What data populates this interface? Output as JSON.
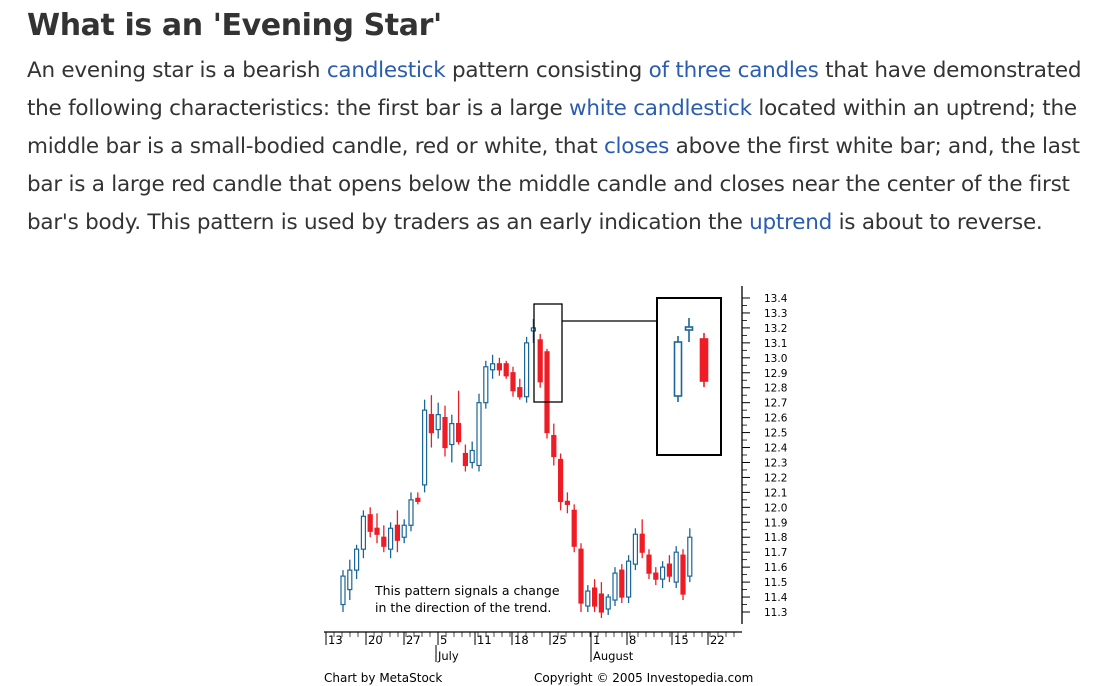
{
  "article": {
    "title": "What is an 'Evening Star'",
    "paragraph": [
      {
        "text": "An evening star is a bearish "
      },
      {
        "text": "candlestick",
        "link": true
      },
      {
        "text": " pattern consisting "
      },
      {
        "text": "of three candles",
        "link": true
      },
      {
        "text": " that have demonstrated the following characteristics: the first bar is a large "
      },
      {
        "text": "white candlestick",
        "link": true
      },
      {
        "text": " located within an uptrend; the middle bar is a small-bodied candle, red or white, that "
      },
      {
        "text": "closes",
        "link": true
      },
      {
        "text": " above the first white bar; and, the last bar is a large red candle that opens below the middle candle and closes near the center of the first bar's body. This pattern is used by traders as an early indication the "
      },
      {
        "text": "uptrend",
        "link": true
      },
      {
        "text": " is about to reverse."
      }
    ]
  },
  "colors": {
    "up": "#1a6699",
    "down": "#ee1c24",
    "link": "#2a5db0",
    "text": "#333333"
  },
  "chart_data": {
    "type": "candlestick",
    "y_ticks": [
      "13.4",
      "13.3",
      "13.2",
      "13.1",
      "13.0",
      "12.9",
      "12.8",
      "12.7",
      "12.6",
      "12.5",
      "12.4",
      "12.3",
      "12.2",
      "12.1",
      "12.0",
      "11.9",
      "11.8",
      "11.7",
      "11.6",
      "11.5",
      "11.4",
      "11.3"
    ],
    "ylim": [
      11.25,
      13.45
    ],
    "x_ticks": [
      "13",
      "20",
      "27",
      "5",
      "11",
      "18",
      "25",
      "1",
      "8",
      "15",
      "22"
    ],
    "month_labels": [
      "July",
      "August"
    ],
    "annotation": [
      "This pattern signals a change",
      "in the direction of the trend."
    ],
    "credit_left": "Chart by MetaStock",
    "credit_right": "Copyright © 2005 Investopedia.com",
    "candles": [
      {
        "o": 11.35,
        "h": 11.58,
        "l": 11.3,
        "c": 11.54
      },
      {
        "o": 11.45,
        "h": 11.65,
        "l": 11.38,
        "c": 11.58
      },
      {
        "o": 11.58,
        "h": 11.75,
        "l": 11.52,
        "c": 11.72
      },
      {
        "o": 11.72,
        "h": 11.98,
        "l": 11.66,
        "c": 11.94
      },
      {
        "o": 11.95,
        "h": 12.0,
        "l": 11.8,
        "c": 11.84
      },
      {
        "o": 11.86,
        "h": 11.96,
        "l": 11.76,
        "c": 11.82
      },
      {
        "o": 11.8,
        "h": 11.88,
        "l": 11.7,
        "c": 11.74
      },
      {
        "o": 11.72,
        "h": 11.9,
        "l": 11.66,
        "c": 11.86
      },
      {
        "o": 11.88,
        "h": 11.98,
        "l": 11.7,
        "c": 11.78
      },
      {
        "o": 11.8,
        "h": 11.92,
        "l": 11.76,
        "c": 11.88
      },
      {
        "o": 11.88,
        "h": 12.1,
        "l": 11.84,
        "c": 12.05
      },
      {
        "o": 12.06,
        "h": 12.1,
        "l": 12.02,
        "c": 12.04
      },
      {
        "o": 12.15,
        "h": 12.72,
        "l": 12.1,
        "c": 12.65
      },
      {
        "o": 12.62,
        "h": 12.75,
        "l": 12.4,
        "c": 12.5
      },
      {
        "o": 12.52,
        "h": 12.7,
        "l": 12.46,
        "c": 12.62
      },
      {
        "o": 12.6,
        "h": 12.68,
        "l": 12.34,
        "c": 12.4
      },
      {
        "o": 12.42,
        "h": 12.62,
        "l": 12.3,
        "c": 12.56
      },
      {
        "o": 12.56,
        "h": 12.78,
        "l": 12.42,
        "c": 12.44
      },
      {
        "o": 12.36,
        "h": 12.42,
        "l": 12.24,
        "c": 12.28
      },
      {
        "o": 12.3,
        "h": 12.44,
        "l": 12.26,
        "c": 12.38
      },
      {
        "o": 12.28,
        "h": 12.76,
        "l": 12.24,
        "c": 12.7
      },
      {
        "o": 12.7,
        "h": 12.98,
        "l": 12.66,
        "c": 12.94
      },
      {
        "o": 12.92,
        "h": 13.02,
        "l": 12.86,
        "c": 12.96
      },
      {
        "o": 12.96,
        "h": 13.0,
        "l": 12.88,
        "c": 12.92
      },
      {
        "o": 12.96,
        "h": 12.98,
        "l": 12.86,
        "c": 12.88
      },
      {
        "o": 12.9,
        "h": 12.94,
        "l": 12.74,
        "c": 12.78
      },
      {
        "o": 12.8,
        "h": 12.86,
        "l": 12.72,
        "c": 12.74
      },
      {
        "o": 12.74,
        "h": 13.14,
        "l": 12.7,
        "c": 13.1
      },
      {
        "o": 13.18,
        "h": 13.26,
        "l": 13.1,
        "c": 13.2
      },
      {
        "o": 13.12,
        "h": 13.16,
        "l": 12.8,
        "c": 12.84
      },
      {
        "o": 13.04,
        "h": 13.06,
        "l": 12.46,
        "c": 12.5
      },
      {
        "o": 12.48,
        "h": 12.56,
        "l": 12.28,
        "c": 12.34
      },
      {
        "o": 12.32,
        "h": 12.36,
        "l": 11.98,
        "c": 12.04
      },
      {
        "o": 12.04,
        "h": 12.1,
        "l": 11.96,
        "c": 12.02
      },
      {
        "o": 11.98,
        "h": 12.02,
        "l": 11.7,
        "c": 11.74
      },
      {
        "o": 11.72,
        "h": 11.76,
        "l": 11.3,
        "c": 11.36
      },
      {
        "o": 11.34,
        "h": 11.48,
        "l": 11.3,
        "c": 11.44
      },
      {
        "o": 11.46,
        "h": 11.52,
        "l": 11.3,
        "c": 11.34
      },
      {
        "o": 11.42,
        "h": 11.5,
        "l": 11.26,
        "c": 11.3
      },
      {
        "o": 11.32,
        "h": 11.42,
        "l": 11.28,
        "c": 11.4
      },
      {
        "o": 11.38,
        "h": 11.6,
        "l": 11.34,
        "c": 11.56
      },
      {
        "o": 11.58,
        "h": 11.62,
        "l": 11.36,
        "c": 11.4
      },
      {
        "o": 11.4,
        "h": 11.68,
        "l": 11.36,
        "c": 11.64
      },
      {
        "o": 11.62,
        "h": 11.86,
        "l": 11.58,
        "c": 11.82
      },
      {
        "o": 11.82,
        "h": 11.92,
        "l": 11.66,
        "c": 11.7
      },
      {
        "o": 11.68,
        "h": 11.72,
        "l": 11.52,
        "c": 11.56
      },
      {
        "o": 11.56,
        "h": 11.6,
        "l": 11.48,
        "c": 11.52
      },
      {
        "o": 11.52,
        "h": 11.64,
        "l": 11.46,
        "c": 11.6
      },
      {
        "o": 11.62,
        "h": 11.68,
        "l": 11.5,
        "c": 11.54
      },
      {
        "o": 11.5,
        "h": 11.74,
        "l": 11.46,
        "c": 11.7
      },
      {
        "o": 11.68,
        "h": 11.72,
        "l": 11.38,
        "c": 11.42
      },
      {
        "o": 11.54,
        "h": 11.86,
        "l": 11.5,
        "c": 11.8
      }
    ]
  }
}
